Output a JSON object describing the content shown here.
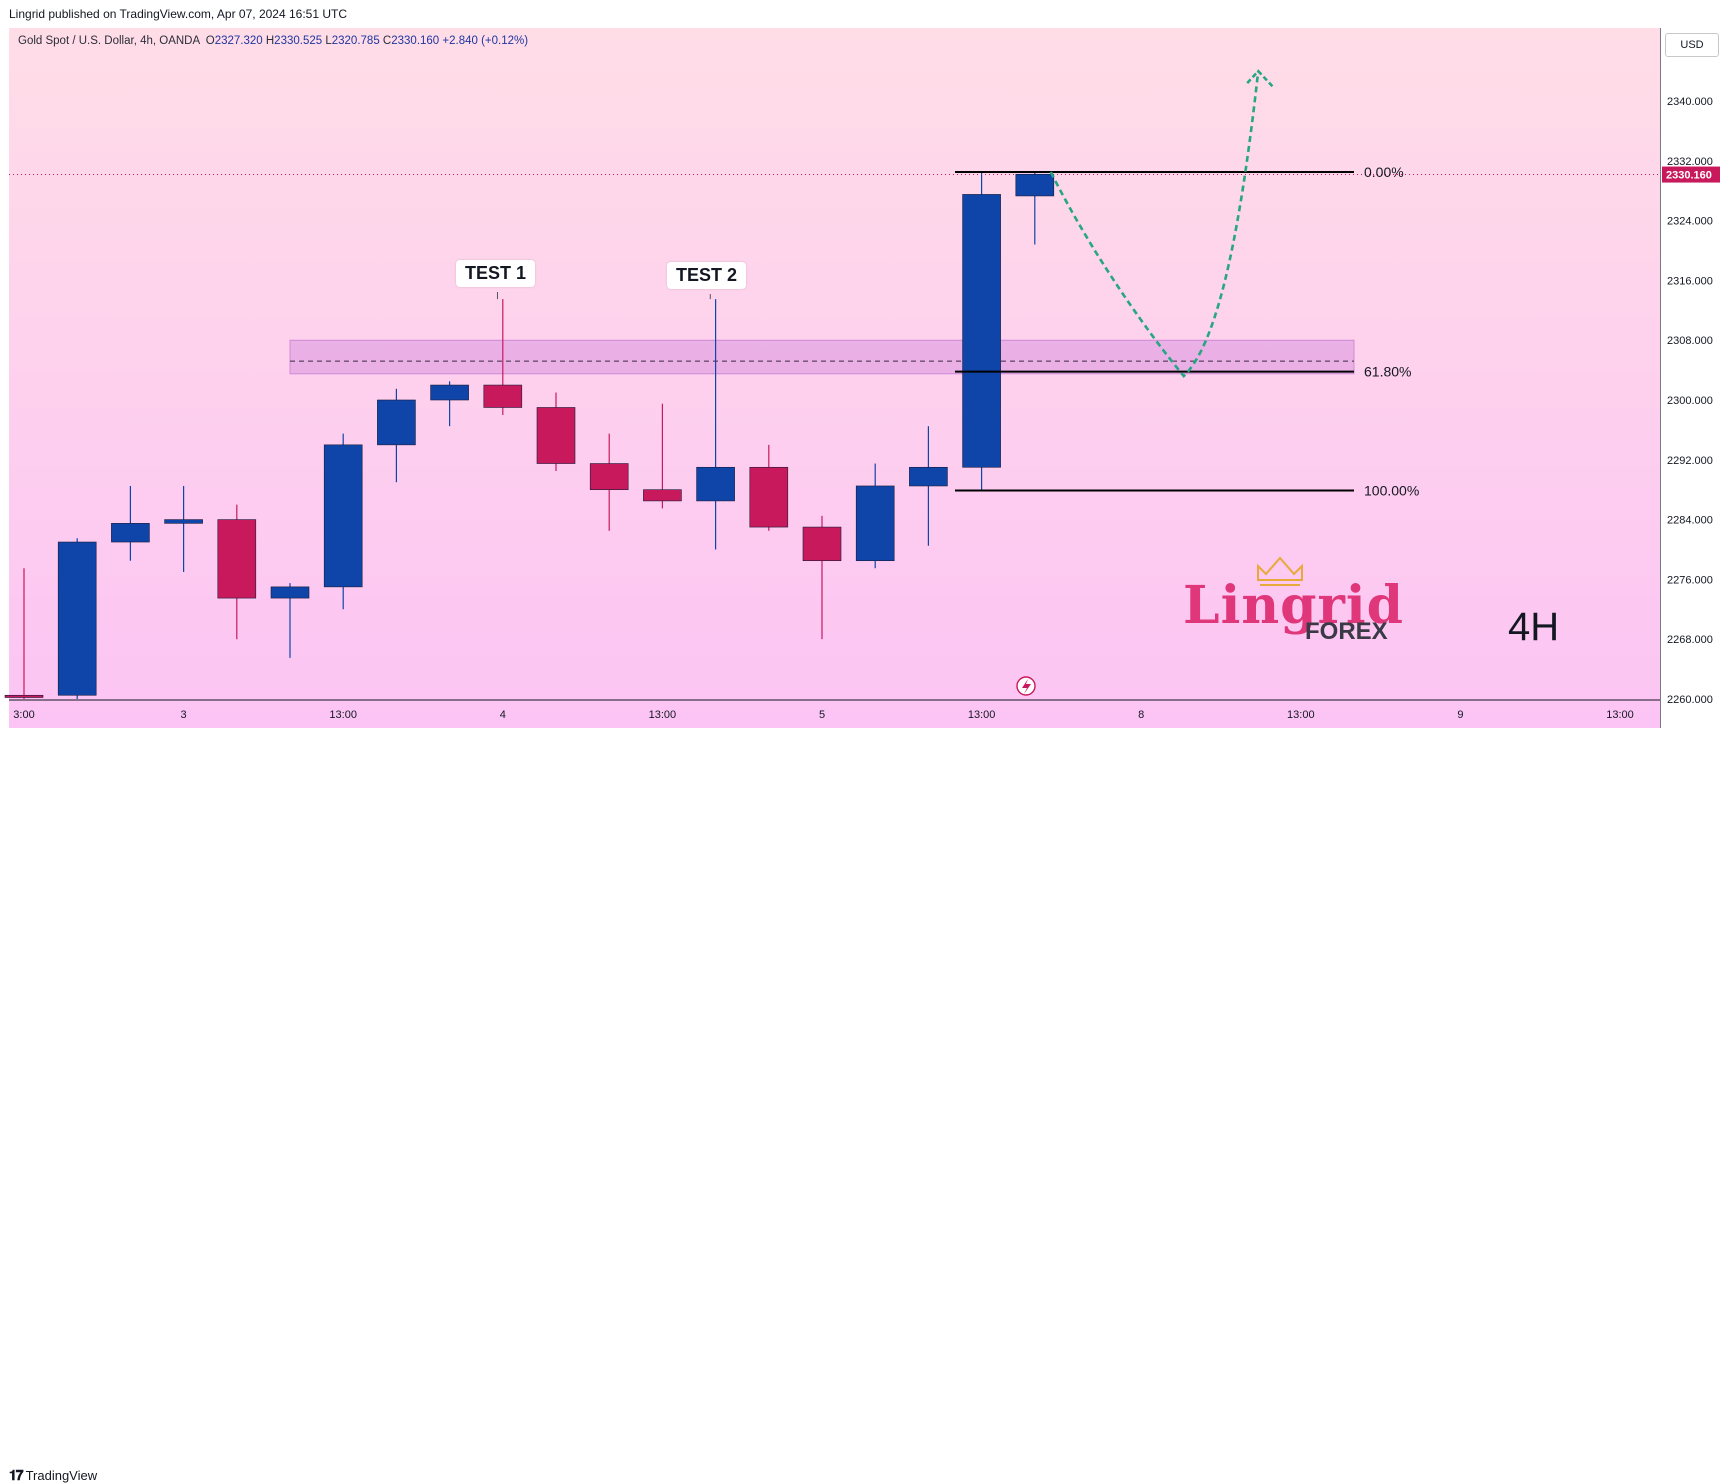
{
  "header": {
    "publisher": "Lingrid published on TradingView.com, Apr 07, 2024 16:51 UTC"
  },
  "legend": {
    "symbol": "Gold Spot / U.S. Dollar, 4h, OANDA",
    "o_label": "O",
    "o_value": "2327.320",
    "h_label": "H",
    "h_value": "2330.525",
    "l_label": "L",
    "l_value": "2320.785",
    "c_label": "C",
    "c_value": "2330.160",
    "change": "+2.840 (+0.12%)"
  },
  "currency": "USD",
  "annotations": {
    "test1": "TEST 1",
    "test2": "TEST 2",
    "timeframe": "4H"
  },
  "logo": {
    "name": "Lingrid",
    "sub": "FOREX"
  },
  "footer": {
    "brand": "TradingView"
  },
  "colors": {
    "bull": "#0f45a8",
    "bear": "#c8195c",
    "zone": "#d996e0",
    "arrow": "#26a683",
    "price_tag": "#c8195c"
  },
  "chart_data": {
    "type": "candlestick",
    "title": "Gold Spot / U.S. Dollar, 4h, OANDA",
    "timeframe": "4H",
    "ylim": [
      2260,
      2347
    ],
    "y_ticks": [
      "2260.000",
      "2268.000",
      "2276.000",
      "2284.000",
      "2292.000",
      "2300.000",
      "2308.000",
      "2316.000",
      "2324.000",
      "2332.000",
      "2340.000"
    ],
    "x_ticks": [
      {
        "label": "3:00",
        "bar": 0
      },
      {
        "label": "3",
        "bar": 3
      },
      {
        "label": "13:00",
        "bar": 6
      },
      {
        "label": "4",
        "bar": 9
      },
      {
        "label": "13:00",
        "bar": 12
      },
      {
        "label": "5",
        "bar": 15
      },
      {
        "label": "13:00",
        "bar": 18
      },
      {
        "label": "8",
        "bar": 21
      },
      {
        "label": "13:00",
        "bar": 24
      },
      {
        "label": "9",
        "bar": 27
      },
      {
        "label": "13:00",
        "bar": 30
      }
    ],
    "candles": [
      {
        "o": 2260.5,
        "h": 2277.5,
        "l": 2260.0,
        "c": 2260.2
      },
      {
        "o": 2260.5,
        "h": 2281.5,
        "l": 2260.0,
        "c": 2281.0
      },
      {
        "o": 2281.0,
        "h": 2288.5,
        "l": 2278.5,
        "c": 2283.5
      },
      {
        "o": 2283.5,
        "h": 2288.5,
        "l": 2277.0,
        "c": 2284.0
      },
      {
        "o": 2284.0,
        "h": 2286.0,
        "l": 2268.0,
        "c": 2273.5
      },
      {
        "o": 2273.5,
        "h": 2275.5,
        "l": 2265.5,
        "c": 2275.0
      },
      {
        "o": 2275.0,
        "h": 2295.5,
        "l": 2272.0,
        "c": 2294.0
      },
      {
        "o": 2294.0,
        "h": 2301.5,
        "l": 2289.0,
        "c": 2300.0
      },
      {
        "o": 2300.0,
        "h": 2302.5,
        "l": 2296.5,
        "c": 2302.0
      },
      {
        "o": 2302.0,
        "h": 2313.5,
        "l": 2298.0,
        "c": 2299.0
      },
      {
        "o": 2299.0,
        "h": 2301.0,
        "l": 2290.5,
        "c": 2291.5
      },
      {
        "o": 2291.5,
        "h": 2295.5,
        "l": 2282.5,
        "c": 2288.0
      },
      {
        "o": 2288.0,
        "h": 2299.5,
        "l": 2285.5,
        "c": 2286.5
      },
      {
        "o": 2286.5,
        "h": 2313.5,
        "l": 2280.0,
        "c": 2291.0
      },
      {
        "o": 2291.0,
        "h": 2294.0,
        "l": 2282.5,
        "c": 2283.0
      },
      {
        "o": 2283.0,
        "h": 2284.5,
        "l": 2268.0,
        "c": 2278.5
      },
      {
        "o": 2278.5,
        "h": 2291.5,
        "l": 2277.5,
        "c": 2288.5
      },
      {
        "o": 2288.5,
        "h": 2296.5,
        "l": 2280.5,
        "c": 2291.0
      },
      {
        "o": 2291.0,
        "h": 2330.5,
        "l": 2288.0,
        "c": 2327.5
      },
      {
        "o": 2327.3,
        "h": 2330.5,
        "l": 2320.8,
        "c": 2330.2
      }
    ],
    "current_price": "2330.160",
    "current_price_value": 2330.16,
    "resistance_zone": {
      "low": 2303.5,
      "high": 2308.0,
      "mid": 2305.2,
      "from_bar": 5.0,
      "to_bar": 25.0
    },
    "fibonacci": {
      "from_bar": 17.5,
      "to_bar": 25.0,
      "levels": [
        {
          "label": "0.00%",
          "value": 2330.5
        },
        {
          "label": "61.80%",
          "value": 2303.8
        },
        {
          "label": "100.00%",
          "value": 2287.9
        }
      ]
    },
    "projection": [
      {
        "bar": 19.3,
        "value": 2330.5
      },
      {
        "bar": 20.4,
        "value": 2315.0
      },
      {
        "bar": 21.8,
        "value": 2303.2
      },
      {
        "bar": 22.5,
        "value": 2308.0
      },
      {
        "bar": 22.9,
        "value": 2325.0
      },
      {
        "bar": 23.2,
        "value": 2344.0
      }
    ]
  }
}
